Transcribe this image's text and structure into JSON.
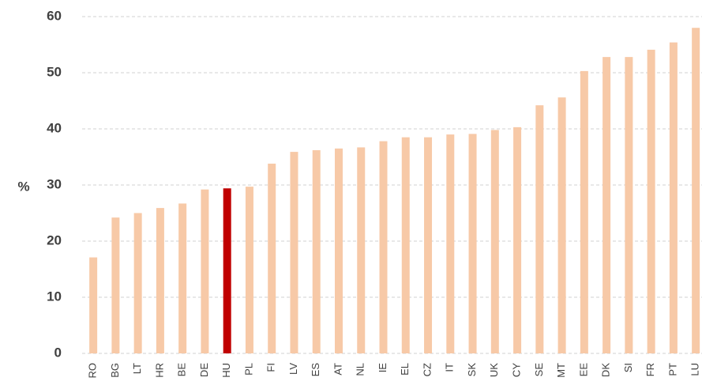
{
  "chart_data": {
    "type": "bar",
    "y_label": "%",
    "categories": [
      "RO",
      "BG",
      "LT",
      "HR",
      "BE",
      "DE",
      "HU",
      "PL",
      "FI",
      "LV",
      "ES",
      "AT",
      "NL",
      "IE",
      "EL",
      "CZ",
      "IT",
      "SK",
      "UK",
      "CY",
      "SE",
      "MT",
      "EE",
      "DK",
      "SI",
      "FR",
      "PT",
      "LU"
    ],
    "values": [
      17.1,
      24.2,
      25.0,
      25.9,
      26.7,
      29.2,
      29.4,
      29.7,
      33.8,
      35.9,
      36.2,
      36.5,
      36.7,
      37.8,
      38.5,
      38.5,
      39.0,
      39.1,
      39.8,
      40.3,
      44.2,
      45.6,
      50.3,
      52.8,
      52.8,
      54.1,
      55.4,
      58.0
    ],
    "colors": [
      "#f7c9a7",
      "#f7c9a7",
      "#f7c9a7",
      "#f7c9a7",
      "#f7c9a7",
      "#f7c9a7",
      "#c00000",
      "#f7c9a7",
      "#f7c9a7",
      "#f7c9a7",
      "#f7c9a7",
      "#f7c9a7",
      "#f7c9a7",
      "#f7c9a7",
      "#f7c9a7",
      "#f7c9a7",
      "#f7c9a7",
      "#f7c9a7",
      "#f7c9a7",
      "#f7c9a7",
      "#f7c9a7",
      "#f7c9a7",
      "#f7c9a7",
      "#f7c9a7",
      "#f7c9a7",
      "#f7c9a7",
      "#f7c9a7",
      "#f7c9a7"
    ],
    "ylim": [
      0,
      60
    ],
    "yticks": [
      0,
      10,
      20,
      30,
      40,
      50,
      60
    ],
    "grid": true
  }
}
